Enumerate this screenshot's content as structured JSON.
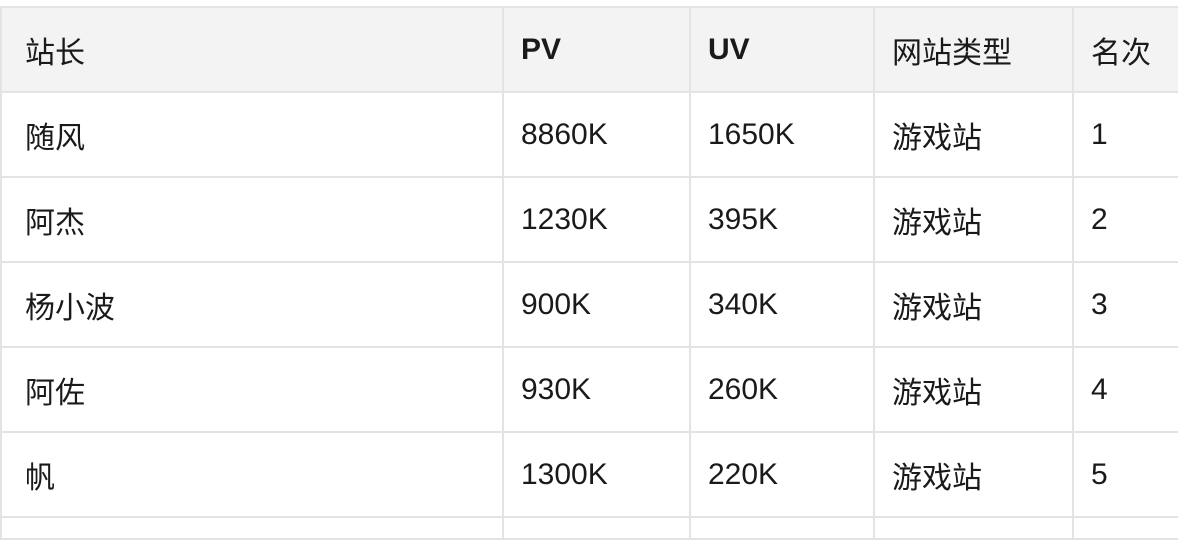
{
  "table": {
    "headers": [
      "站长",
      "PV",
      "UV",
      "网站类型",
      "名次"
    ],
    "rows": [
      [
        "随风",
        "8860K",
        "1650K",
        "游戏站",
        "1"
      ],
      [
        "阿杰",
        "1230K",
        "395K",
        "游戏站",
        "2"
      ],
      [
        "杨小波",
        "900K",
        "340K",
        "游戏站",
        "3"
      ],
      [
        "阿佐",
        "930K",
        "260K",
        "游戏站",
        "4"
      ],
      [
        "帆",
        "1300K",
        "220K",
        "游戏站",
        "5"
      ]
    ]
  }
}
